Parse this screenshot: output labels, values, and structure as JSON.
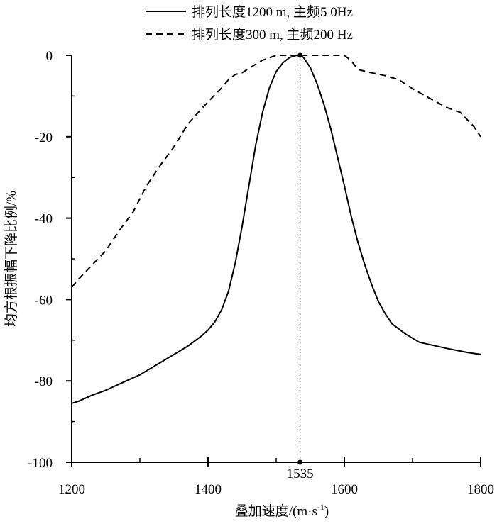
{
  "chart_data": {
    "type": "line",
    "xlabel": "叠加速度/(m·s",
    "xlabel_sup": "-1",
    "xlabel_close": ")",
    "ylabel": "均方根振幅下降比例/%",
    "xlim": [
      1200,
      1800
    ],
    "ylim": [
      -100,
      0
    ],
    "x_ticks": [
      1200,
      1400,
      1600,
      1800
    ],
    "x_tick_labels": [
      "1200",
      "1400",
      "1600",
      "1800"
    ],
    "x_minor_ticks": [
      1300,
      1500,
      1700
    ],
    "y_ticks": [
      0,
      -20,
      -40,
      -60,
      -80,
      -100
    ],
    "y_tick_labels": [
      "0",
      "-20",
      "-40",
      "-60",
      "-80",
      "-100"
    ],
    "grid": false,
    "legend_position": "top-center",
    "marker": {
      "x": 1535,
      "label": "1535"
    },
    "series": [
      {
        "name": "排列长度1200 m, 主频5 0Hz",
        "style": "solid",
        "color": "#000000",
        "x": [
          1200,
          1210,
          1230,
          1250,
          1280,
          1300,
          1330,
          1350,
          1370,
          1390,
          1400,
          1410,
          1420,
          1430,
          1440,
          1450,
          1460,
          1470,
          1480,
          1490,
          1500,
          1510,
          1520,
          1530,
          1535,
          1540,
          1550,
          1560,
          1570,
          1580,
          1590,
          1600,
          1610,
          1620,
          1630,
          1640,
          1650,
          1660,
          1670,
          1690,
          1710,
          1750,
          1780,
          1800
        ],
        "y": [
          -85.5,
          -85,
          -83.5,
          -82.3,
          -80,
          -78.5,
          -75.5,
          -73.5,
          -71.5,
          -69,
          -67.5,
          -65.5,
          -62.5,
          -58,
          -51,
          -42,
          -32,
          -22,
          -14,
          -8,
          -4,
          -1.8,
          -0.5,
          0,
          0,
          -0.5,
          -3,
          -7,
          -12,
          -18,
          -25,
          -32,
          -39.5,
          -46,
          -51.5,
          -56.3,
          -60.5,
          -63.5,
          -66,
          -68.5,
          -70.5,
          -72,
          -73,
          -73.5
        ]
      },
      {
        "name": "排列长度300 m, 主频200 Hz",
        "style": "dashed",
        "color": "#000000",
        "x": [
          1200,
          1210,
          1230,
          1250,
          1270,
          1290,
          1310,
          1330,
          1350,
          1370,
          1390,
          1410,
          1420,
          1430,
          1440,
          1450,
          1460,
          1480,
          1500,
          1520,
          1540,
          1560,
          1580,
          1600,
          1610,
          1620,
          1640,
          1660,
          1680,
          1700,
          1730,
          1750,
          1770,
          1790,
          1800
        ],
        "y": [
          -57,
          -55,
          -51.5,
          -48,
          -43,
          -38.5,
          -32,
          -27,
          -22.5,
          -17,
          -13.2,
          -9.7,
          -8,
          -6,
          -4.7,
          -4.3,
          -3.2,
          -1.2,
          0,
          0,
          0,
          0,
          0,
          0,
          -1.3,
          -3.5,
          -4.3,
          -5,
          -6,
          -8.2,
          -11,
          -12.8,
          -14,
          -17.5,
          -20
        ]
      }
    ]
  }
}
